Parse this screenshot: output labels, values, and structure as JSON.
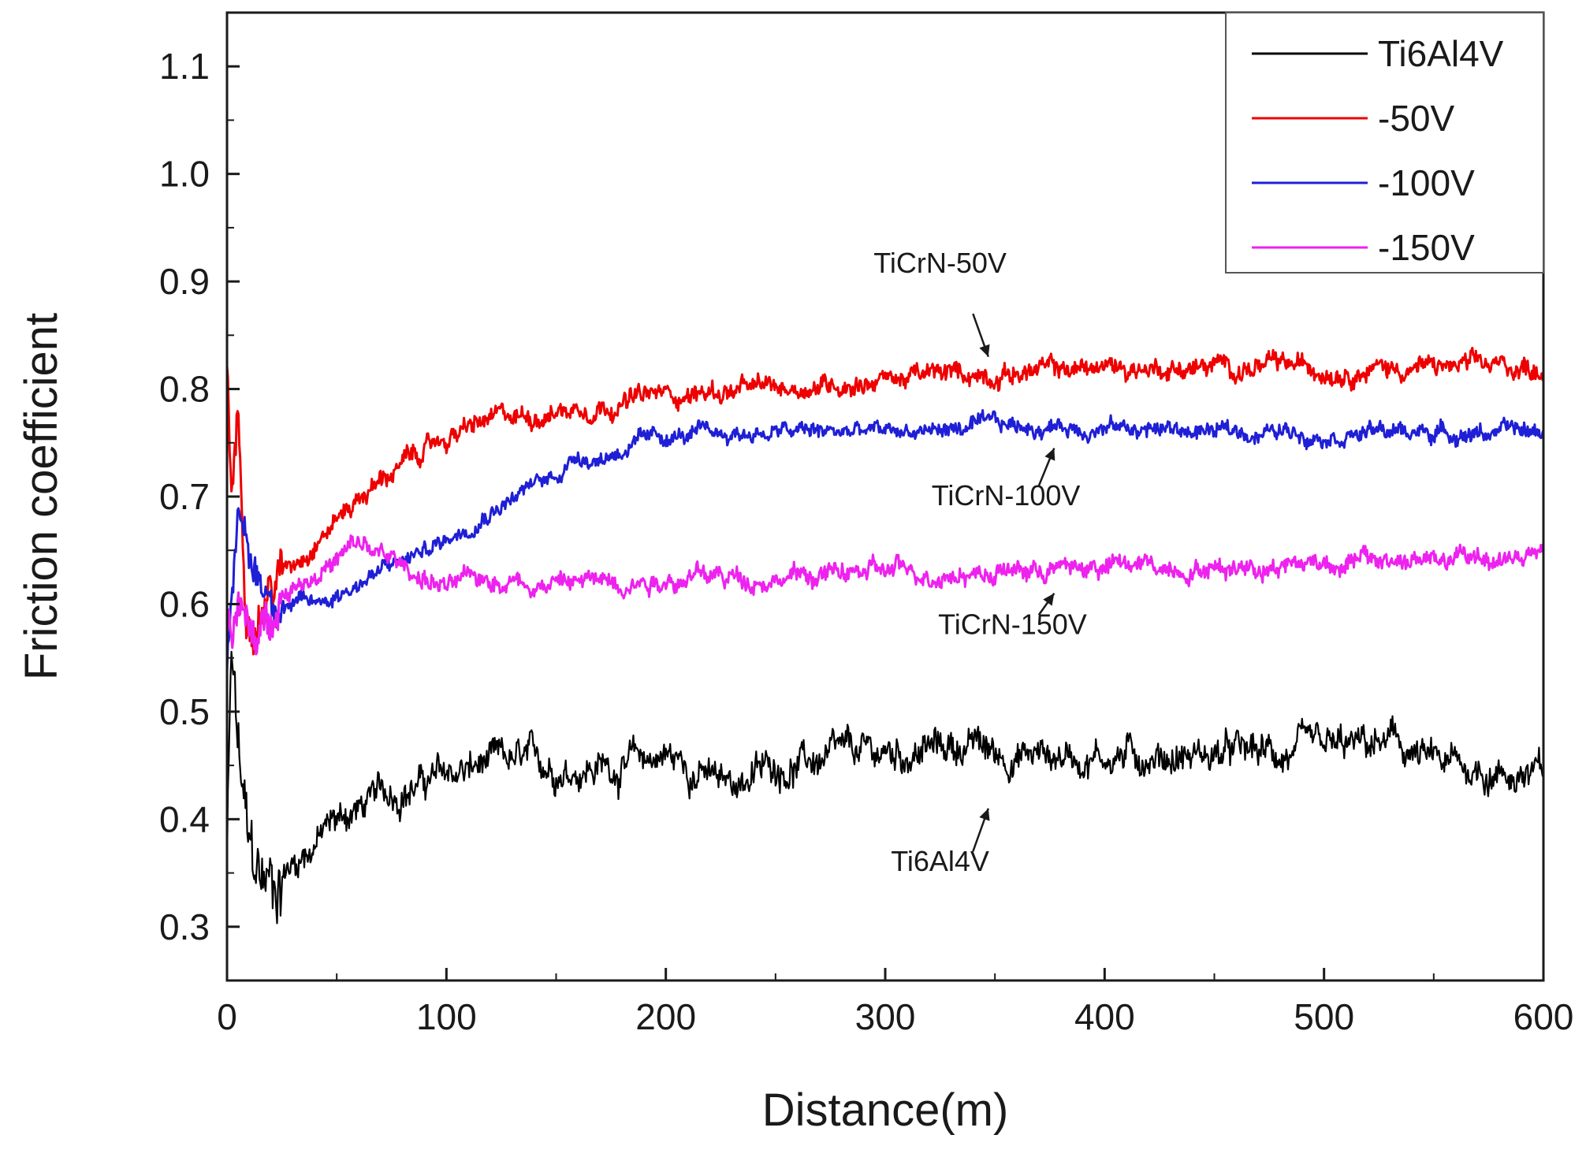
{
  "chart_data": {
    "type": "line",
    "xlabel": "Distance(m)",
    "ylabel": "Friction coefficient",
    "xlim": [
      0,
      600
    ],
    "ylim": [
      0.25,
      1.15
    ],
    "xticks": [
      0,
      100,
      200,
      300,
      400,
      500,
      600
    ],
    "xtick_labels": [
      "0",
      "100",
      "200",
      "300",
      "400",
      "500",
      "600"
    ],
    "yticks": [
      0.3,
      0.4,
      0.5,
      0.6,
      0.7,
      0.8,
      0.9,
      1.0,
      1.1
    ],
    "ytick_labels": [
      "0.3",
      "0.4",
      "0.5",
      "0.6",
      "0.7",
      "0.8",
      "0.9",
      "1.0",
      "1.1"
    ],
    "grid": false,
    "legend_position": "top-right",
    "series": [
      {
        "name": "Ti6Al4V",
        "color": "#000000",
        "noise": 0.02,
        "x": [
          0,
          2,
          5,
          8,
          10,
          15,
          20,
          25,
          30,
          35,
          40,
          50,
          60,
          80,
          100,
          120,
          150,
          180,
          200,
          220,
          225,
          250,
          300,
          340,
          350,
          400,
          450,
          500,
          530,
          550,
          600
        ],
        "y": [
          0.36,
          0.55,
          0.46,
          0.4,
          0.36,
          0.34,
          0.34,
          0.35,
          0.36,
          0.37,
          0.38,
          0.4,
          0.41,
          0.43,
          0.44,
          0.45,
          0.45,
          0.45,
          0.46,
          0.44,
          0.43,
          0.45,
          0.46,
          0.47,
          0.46,
          0.46,
          0.46,
          0.46,
          0.47,
          0.45,
          0.44
        ]
      },
      {
        "name": "-50V",
        "color": "#ee0000",
        "noise": 0.012,
        "x": [
          0,
          2,
          5,
          8,
          10,
          15,
          20,
          30,
          40,
          50,
          60,
          80,
          100,
          120,
          150,
          200,
          250,
          300,
          350,
          400,
          450,
          500,
          550,
          600
        ],
        "y": [
          0.82,
          0.7,
          0.78,
          0.62,
          0.6,
          0.6,
          0.62,
          0.64,
          0.66,
          0.68,
          0.7,
          0.73,
          0.755,
          0.77,
          0.78,
          0.795,
          0.8,
          0.81,
          0.815,
          0.82,
          0.82,
          0.82,
          0.82,
          0.82
        ]
      },
      {
        "name": "-100V",
        "color": "#1f1fd6",
        "noise": 0.01,
        "x": [
          0,
          2,
          5,
          8,
          12,
          20,
          30,
          40,
          50,
          60,
          80,
          100,
          120,
          150,
          160,
          170,
          180,
          200,
          250,
          300,
          350,
          400,
          450,
          500,
          550,
          600
        ],
        "y": [
          0.55,
          0.62,
          0.68,
          0.66,
          0.63,
          0.61,
          0.6,
          0.6,
          0.61,
          0.62,
          0.64,
          0.66,
          0.69,
          0.72,
          0.74,
          0.735,
          0.745,
          0.755,
          0.76,
          0.76,
          0.765,
          0.765,
          0.76,
          0.76,
          0.76,
          0.76
        ]
      },
      {
        "name": "-150V",
        "color": "#ee22ee",
        "noise": 0.012,
        "x": [
          0,
          2,
          5,
          10,
          15,
          20,
          30,
          40,
          50,
          60,
          70,
          80,
          90,
          100,
          120,
          150,
          200,
          250,
          300,
          350,
          400,
          450,
          500,
          550,
          600
        ],
        "y": [
          0.6,
          0.58,
          0.6,
          0.57,
          0.56,
          0.6,
          0.62,
          0.63,
          0.64,
          0.655,
          0.645,
          0.635,
          0.625,
          0.615,
          0.625,
          0.62,
          0.625,
          0.625,
          0.63,
          0.63,
          0.635,
          0.635,
          0.64,
          0.64,
          0.645
        ]
      }
    ],
    "annotations": [
      {
        "text": "TiCrN-50V",
        "x": 325,
        "y": 0.908,
        "arrow_from": [
          340,
          0.87
        ],
        "arrow_to": [
          347,
          0.83
        ]
      },
      {
        "text": "TiCrN-100V",
        "x": 355,
        "y": 0.692,
        "arrow_from": [
          370,
          0.71
        ],
        "arrow_to": [
          377,
          0.745
        ]
      },
      {
        "text": "TiCrN-150V",
        "x": 358,
        "y": 0.572,
        "arrow_from": [
          370,
          0.59
        ],
        "arrow_to": [
          377,
          0.61
        ]
      },
      {
        "text": "Ti6Al4V",
        "x": 325,
        "y": 0.352,
        "arrow_from": [
          340,
          0.37
        ],
        "arrow_to": [
          347,
          0.41
        ]
      }
    ]
  }
}
